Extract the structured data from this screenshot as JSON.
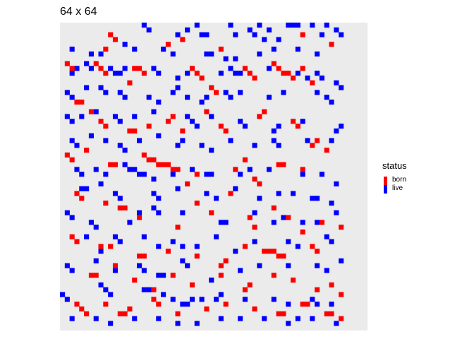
{
  "chart_data": {
    "type": "heatmap",
    "title": "64 x 64",
    "grid_size": 64,
    "legend": {
      "title": "status",
      "position": "right",
      "entries": [
        {
          "label": "born",
          "color": "#ff0000"
        },
        {
          "label": "live",
          "color": "#0000ff"
        }
      ]
    },
    "panel_background": "#ebebeb",
    "axes": {
      "visible": false,
      "grid": false
    },
    "cells_note": "approximate reconstruction of the visible cell pattern",
    "cells": {
      "born": [
        [
          10,
          2
        ],
        [
          11,
          3
        ],
        [
          9,
          5
        ],
        [
          22,
          4
        ],
        [
          25,
          3
        ],
        [
          33,
          5
        ],
        [
          50,
          2
        ],
        [
          56,
          4
        ],
        [
          1,
          8
        ],
        [
          2,
          9
        ],
        [
          7,
          8
        ],
        [
          8,
          9
        ],
        [
          9,
          10
        ],
        [
          15,
          9
        ],
        [
          16,
          9
        ],
        [
          17,
          10
        ],
        [
          14,
          12
        ],
        [
          27,
          9
        ],
        [
          28,
          10
        ],
        [
          29,
          11
        ],
        [
          31,
          13
        ],
        [
          32,
          14
        ],
        [
          38,
          9
        ],
        [
          39,
          10
        ],
        [
          40,
          11
        ],
        [
          44,
          8
        ],
        [
          45,
          9
        ],
        [
          46,
          10
        ],
        [
          47,
          10
        ],
        [
          48,
          11
        ],
        [
          50,
          9
        ],
        [
          52,
          12
        ],
        [
          3,
          16
        ],
        [
          4,
          16
        ],
        [
          6,
          18
        ],
        [
          8,
          20
        ],
        [
          9,
          21
        ],
        [
          14,
          22
        ],
        [
          15,
          22
        ],
        [
          18,
          21
        ],
        [
          22,
          20
        ],
        [
          23,
          19
        ],
        [
          25,
          22
        ],
        [
          30,
          18
        ],
        [
          33,
          21
        ],
        [
          34,
          22
        ],
        [
          41,
          19
        ],
        [
          42,
          18
        ],
        [
          48,
          20
        ],
        [
          49,
          21
        ],
        [
          52,
          25
        ],
        [
          53,
          24
        ],
        [
          55,
          26
        ],
        [
          1,
          27
        ],
        [
          2,
          28
        ],
        [
          5,
          26
        ],
        [
          10,
          29
        ],
        [
          11,
          29
        ],
        [
          17,
          27
        ],
        [
          18,
          28
        ],
        [
          19,
          28
        ],
        [
          20,
          29
        ],
        [
          21,
          29
        ],
        [
          22,
          29
        ],
        [
          23,
          30
        ],
        [
          24,
          30
        ],
        [
          26,
          33
        ],
        [
          28,
          31
        ],
        [
          36,
          30
        ],
        [
          38,
          28
        ],
        [
          40,
          32
        ],
        [
          41,
          33
        ],
        [
          45,
          29
        ],
        [
          46,
          29
        ],
        [
          50,
          30
        ],
        [
          3,
          35
        ],
        [
          4,
          36
        ],
        [
          9,
          37
        ],
        [
          12,
          38
        ],
        [
          13,
          38
        ],
        [
          16,
          40
        ],
        [
          24,
          42
        ],
        [
          28,
          37
        ],
        [
          31,
          39
        ],
        [
          35,
          35
        ],
        [
          39,
          40
        ],
        [
          40,
          42
        ],
        [
          44,
          38
        ],
        [
          47,
          40
        ],
        [
          50,
          43
        ],
        [
          54,
          41
        ],
        [
          58,
          42
        ],
        [
          2,
          44
        ],
        [
          3,
          45
        ],
        [
          8,
          46
        ],
        [
          10,
          46
        ],
        [
          16,
          48
        ],
        [
          17,
          48
        ],
        [
          22,
          47
        ],
        [
          28,
          48
        ],
        [
          33,
          50
        ],
        [
          34,
          49
        ],
        [
          38,
          46
        ],
        [
          42,
          47
        ],
        [
          43,
          47
        ],
        [
          44,
          47
        ],
        [
          45,
          48
        ],
        [
          46,
          48
        ],
        [
          52,
          46
        ],
        [
          53,
          47
        ],
        [
          6,
          52
        ],
        [
          7,
          52
        ],
        [
          11,
          50
        ],
        [
          15,
          53
        ],
        [
          19,
          55
        ],
        [
          23,
          52
        ],
        [
          27,
          54
        ],
        [
          33,
          52
        ],
        [
          38,
          55
        ],
        [
          39,
          54
        ],
        [
          44,
          52
        ],
        [
          48,
          53
        ],
        [
          53,
          55
        ],
        [
          56,
          54
        ],
        [
          58,
          56
        ],
        [
          3,
          58
        ],
        [
          4,
          59
        ],
        [
          5,
          60
        ],
        [
          9,
          58
        ],
        [
          12,
          60
        ],
        [
          13,
          60
        ],
        [
          14,
          59
        ],
        [
          19,
          57
        ],
        [
          20,
          58
        ],
        [
          24,
          60
        ],
        [
          30,
          59
        ],
        [
          34,
          58
        ],
        [
          40,
          59
        ],
        [
          45,
          60
        ],
        [
          46,
          60
        ],
        [
          50,
          58
        ],
        [
          51,
          58
        ],
        [
          55,
          60
        ],
        [
          56,
          60
        ],
        [
          58,
          61
        ]
      ],
      "live": [
        [
          17,
          0
        ],
        [
          18,
          1
        ],
        [
          28,
          0
        ],
        [
          35,
          0
        ],
        [
          41,
          0
        ],
        [
          43,
          1
        ],
        [
          47,
          0
        ],
        [
          48,
          0
        ],
        [
          49,
          0
        ],
        [
          52,
          0
        ],
        [
          55,
          0
        ],
        [
          57,
          1
        ],
        [
          24,
          2
        ],
        [
          26,
          1
        ],
        [
          29,
          2
        ],
        [
          30,
          2
        ],
        [
          36,
          2
        ],
        [
          39,
          1
        ],
        [
          40,
          2
        ],
        [
          42,
          3
        ],
        [
          45,
          3
        ],
        [
          54,
          2
        ],
        [
          58,
          2
        ],
        [
          2,
          5
        ],
        [
          6,
          6
        ],
        [
          8,
          6
        ],
        [
          13,
          4
        ],
        [
          15,
          5
        ],
        [
          21,
          5
        ],
        [
          23,
          6
        ],
        [
          30,
          6
        ],
        [
          31,
          6
        ],
        [
          34,
          7
        ],
        [
          36,
          7
        ],
        [
          41,
          6
        ],
        [
          44,
          5
        ],
        [
          49,
          5
        ],
        [
          53,
          6
        ],
        [
          2,
          10
        ],
        [
          3,
          9
        ],
        [
          5,
          8
        ],
        [
          6,
          9
        ],
        [
          10,
          9
        ],
        [
          11,
          10
        ],
        [
          12,
          10
        ],
        [
          13,
          9
        ],
        [
          19,
          9
        ],
        [
          20,
          10
        ],
        [
          24,
          11
        ],
        [
          26,
          10
        ],
        [
          33,
          10
        ],
        [
          35,
          9
        ],
        [
          36,
          10
        ],
        [
          37,
          10
        ],
        [
          43,
          9
        ],
        [
          49,
          10
        ],
        [
          51,
          11
        ],
        [
          53,
          10
        ],
        [
          54,
          11
        ],
        [
          57,
          12
        ],
        [
          58,
          13
        ],
        [
          1,
          14
        ],
        [
          2,
          15
        ],
        [
          5,
          13
        ],
        [
          8,
          13
        ],
        [
          9,
          14
        ],
        [
          12,
          14
        ],
        [
          13,
          15
        ],
        [
          18,
          15
        ],
        [
          20,
          16
        ],
        [
          23,
          14
        ],
        [
          24,
          13
        ],
        [
          26,
          15
        ],
        [
          29,
          16
        ],
        [
          30,
          15
        ],
        [
          34,
          14
        ],
        [
          35,
          15
        ],
        [
          37,
          14
        ],
        [
          43,
          15
        ],
        [
          46,
          14
        ],
        [
          53,
          14
        ],
        [
          55,
          15
        ],
        [
          56,
          16
        ],
        [
          1,
          19
        ],
        [
          2,
          20
        ],
        [
          4,
          19
        ],
        [
          7,
          18
        ],
        [
          11,
          19
        ],
        [
          12,
          20
        ],
        [
          15,
          19
        ],
        [
          19,
          18
        ],
        [
          26,
          19
        ],
        [
          27,
          20
        ],
        [
          28,
          21
        ],
        [
          31,
          19
        ],
        [
          37,
          20
        ],
        [
          38,
          21
        ],
        [
          44,
          22
        ],
        [
          45,
          21
        ],
        [
          50,
          20
        ],
        [
          57,
          22
        ],
        [
          58,
          21
        ],
        [
          2,
          24
        ],
        [
          3,
          25
        ],
        [
          6,
          23
        ],
        [
          9,
          24
        ],
        [
          12,
          25
        ],
        [
          13,
          26
        ],
        [
          16,
          24
        ],
        [
          20,
          23
        ],
        [
          24,
          25
        ],
        [
          25,
          24
        ],
        [
          29,
          25
        ],
        [
          31,
          26
        ],
        [
          35,
          24
        ],
        [
          40,
          25
        ],
        [
          44,
          24
        ],
        [
          45,
          25
        ],
        [
          51,
          24
        ],
        [
          56,
          24
        ],
        [
          3,
          30
        ],
        [
          4,
          31
        ],
        [
          7,
          30
        ],
        [
          9,
          31
        ],
        [
          13,
          29
        ],
        [
          14,
          30
        ],
        [
          15,
          30
        ],
        [
          16,
          31
        ],
        [
          17,
          31
        ],
        [
          19,
          32
        ],
        [
          23,
          31
        ],
        [
          27,
          30
        ],
        [
          30,
          31
        ],
        [
          31,
          31
        ],
        [
          37,
          31
        ],
        [
          39,
          30
        ],
        [
          43,
          30
        ],
        [
          50,
          31
        ],
        [
          54,
          31
        ],
        [
          57,
          33
        ],
        [
          4,
          34
        ],
        [
          5,
          34
        ],
        [
          8,
          33
        ],
        [
          11,
          35
        ],
        [
          12,
          36
        ],
        [
          19,
          35
        ],
        [
          20,
          36
        ],
        [
          24,
          34
        ],
        [
          30,
          35
        ],
        [
          32,
          36
        ],
        [
          36,
          34
        ],
        [
          41,
          36
        ],
        [
          45,
          35
        ],
        [
          48,
          35
        ],
        [
          52,
          36
        ],
        [
          53,
          36
        ],
        [
          56,
          37
        ],
        [
          1,
          39
        ],
        [
          2,
          40
        ],
        [
          6,
          41
        ],
        [
          7,
          42
        ],
        [
          14,
          41
        ],
        [
          16,
          39
        ],
        [
          19,
          38
        ],
        [
          20,
          39
        ],
        [
          25,
          39
        ],
        [
          33,
          41
        ],
        [
          34,
          41
        ],
        [
          40,
          39
        ],
        [
          44,
          41
        ],
        [
          46,
          40
        ],
        [
          50,
          41
        ],
        [
          53,
          41
        ],
        [
          57,
          39
        ],
        [
          5,
          44
        ],
        [
          8,
          47
        ],
        [
          11,
          44
        ],
        [
          12,
          45
        ],
        [
          17,
          44
        ],
        [
          20,
          46
        ],
        [
          23,
          45
        ],
        [
          25,
          46
        ],
        [
          28,
          46
        ],
        [
          32,
          44
        ],
        [
          36,
          47
        ],
        [
          40,
          45
        ],
        [
          47,
          45
        ],
        [
          49,
          46
        ],
        [
          55,
          44
        ],
        [
          56,
          45
        ],
        [
          1,
          50
        ],
        [
          2,
          51
        ],
        [
          7,
          49
        ],
        [
          11,
          51
        ],
        [
          16,
          50
        ],
        [
          17,
          51
        ],
        [
          20,
          52
        ],
        [
          21,
          52
        ],
        [
          25,
          49
        ],
        [
          26,
          50
        ],
        [
          31,
          53
        ],
        [
          37,
          51
        ],
        [
          41,
          50
        ],
        [
          47,
          50
        ],
        [
          53,
          50
        ],
        [
          55,
          51
        ],
        [
          58,
          49
        ],
        [
          0,
          56
        ],
        [
          1,
          57
        ],
        [
          8,
          54
        ],
        [
          9,
          55
        ],
        [
          10,
          56
        ],
        [
          17,
          55
        ],
        [
          18,
          55
        ],
        [
          21,
          56
        ],
        [
          23,
          57
        ],
        [
          25,
          58
        ],
        [
          26,
          58
        ],
        [
          27,
          57
        ],
        [
          29,
          57
        ],
        [
          32,
          57
        ],
        [
          33,
          56
        ],
        [
          38,
          57
        ],
        [
          44,
          57
        ],
        [
          47,
          58
        ],
        [
          52,
          57
        ],
        [
          53,
          58
        ],
        [
          56,
          58
        ],
        [
          2,
          61
        ],
        [
          7,
          61
        ],
        [
          10,
          62
        ],
        [
          15,
          61
        ],
        [
          20,
          61
        ],
        [
          24,
          62
        ],
        [
          28,
          62
        ],
        [
          33,
          61
        ],
        [
          37,
          61
        ],
        [
          42,
          61
        ],
        [
          47,
          62
        ],
        [
          49,
          61
        ],
        [
          52,
          61
        ],
        [
          57,
          62
        ]
      ]
    }
  }
}
